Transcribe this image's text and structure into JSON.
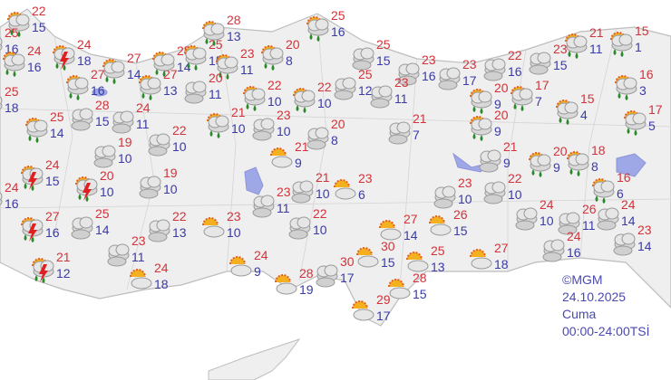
{
  "credit": {
    "source": "©MGM",
    "date": "24.10.2025",
    "day": "Cuma",
    "period": "00:00-24:00TSİ"
  },
  "colors": {
    "high": "#d2333a",
    "low": "#3a3aa8",
    "land": "#efefef",
    "water": "#9fa8e6"
  },
  "stations": [
    {
      "icon": "rain",
      "high": "22",
      "low": "15"
    },
    {
      "icon": "rain",
      "high": "25",
      "low": "16"
    },
    {
      "icon": "rain",
      "high": "24",
      "low": "16"
    },
    {
      "icon": "storm",
      "high": "24",
      "low": "18"
    },
    {
      "icon": "rain",
      "high": "27",
      "low": "14"
    },
    {
      "icon": "rain",
      "high": "27",
      "low": "16"
    },
    {
      "icon": "rain",
      "high": "27",
      "low": "13"
    },
    {
      "icon": "rain",
      "high": "25",
      "low": "14"
    },
    {
      "icon": "rain",
      "high": "25",
      "low": "15"
    },
    {
      "icon": "rain",
      "high": "28",
      "low": "13"
    },
    {
      "icon": "rain",
      "high": "23",
      "low": "11"
    },
    {
      "icon": "cloudy",
      "high": "20",
      "low": "11"
    },
    {
      "icon": "rain",
      "high": "20",
      "low": "8"
    },
    {
      "icon": "rain",
      "high": "25",
      "low": "16"
    },
    {
      "icon": "rain",
      "high": "25",
      "low": "18"
    },
    {
      "icon": "rain",
      "high": "25",
      "low": "14"
    },
    {
      "icon": "cloudy",
      "high": "28",
      "low": "15"
    },
    {
      "icon": "cloudy",
      "high": "24",
      "low": "11"
    },
    {
      "icon": "rain",
      "high": "22",
      "low": "10"
    },
    {
      "icon": "rain",
      "high": "22",
      "low": "10"
    },
    {
      "icon": "rain",
      "high": "21",
      "low": "10"
    },
    {
      "icon": "cloudy",
      "high": "23",
      "low": "10"
    },
    {
      "icon": "cloudy",
      "high": "22",
      "low": "10"
    },
    {
      "icon": "cloudy",
      "high": "19",
      "low": "10"
    },
    {
      "icon": "cloudy",
      "high": "20",
      "low": "8"
    },
    {
      "icon": "partly",
      "high": "21",
      "low": "9"
    },
    {
      "icon": "cloudy",
      "high": "25",
      "low": "15"
    },
    {
      "icon": "cloudy",
      "high": "23",
      "low": "16"
    },
    {
      "icon": "cloudy",
      "high": "25",
      "low": "12"
    },
    {
      "icon": "cloudy",
      "high": "23",
      "low": "11"
    },
    {
      "icon": "cloudy",
      "high": "21",
      "low": "7"
    },
    {
      "icon": "cloudy",
      "high": "23",
      "low": "17"
    },
    {
      "icon": "cloudy",
      "high": "22",
      "low": "16"
    },
    {
      "icon": "cloudy",
      "high": "23",
      "low": "15"
    },
    {
      "icon": "rain",
      "high": "21",
      "low": "11"
    },
    {
      "icon": "rain",
      "high": "15",
      "low": "1"
    },
    {
      "icon": "rain",
      "high": "20",
      "low": "9"
    },
    {
      "icon": "rain",
      "high": "17",
      "low": "7"
    },
    {
      "icon": "rain",
      "high": "20",
      "low": "9"
    },
    {
      "icon": "rain",
      "high": "15",
      "low": "4"
    },
    {
      "icon": "rain",
      "high": "16",
      "low": "3"
    },
    {
      "icon": "rain",
      "high": "17",
      "low": "5"
    },
    {
      "icon": "storm",
      "high": "24",
      "low": "15"
    },
    {
      "icon": "rain",
      "high": "24",
      "low": "16"
    },
    {
      "icon": "storm",
      "high": "20",
      "low": "10"
    },
    {
      "icon": "cloudy",
      "high": "19",
      "low": "10"
    },
    {
      "icon": "storm",
      "high": "27",
      "low": "16"
    },
    {
      "icon": "cloudy",
      "high": "25",
      "low": "14"
    },
    {
      "icon": "storm",
      "high": "21",
      "low": "12"
    },
    {
      "icon": "cloudy",
      "high": "23",
      "low": "11"
    },
    {
      "icon": "cloudy",
      "high": "22",
      "low": "13"
    },
    {
      "icon": "partly",
      "high": "23",
      "low": "10"
    },
    {
      "icon": "cloudy",
      "high": "23",
      "low": "11"
    },
    {
      "icon": "cloudy",
      "high": "21",
      "low": "10"
    },
    {
      "icon": "partly",
      "high": "23",
      "low": "6"
    },
    {
      "icon": "cloudy",
      "high": "22",
      "low": "10"
    },
    {
      "icon": "partly",
      "high": "24",
      "low": "9"
    },
    {
      "icon": "partly",
      "high": "24",
      "low": "18"
    },
    {
      "icon": "partly",
      "high": "28",
      "low": "19"
    },
    {
      "icon": "cloudy",
      "high": "30",
      "low": "17"
    },
    {
      "icon": "partly",
      "high": "30",
      "low": "15"
    },
    {
      "icon": "partly",
      "high": "27",
      "low": "14"
    },
    {
      "icon": "partly",
      "high": "26",
      "low": "15"
    },
    {
      "icon": "partly",
      "high": "25",
      "low": "13"
    },
    {
      "icon": "partly",
      "high": "28",
      "low": "15"
    },
    {
      "icon": "partly",
      "high": "29",
      "low": "17"
    },
    {
      "icon": "partly",
      "high": "27",
      "low": "18"
    },
    {
      "icon": "cloudy",
      "high": "21",
      "low": "9"
    },
    {
      "icon": "cloudy",
      "high": "23",
      "low": "10"
    },
    {
      "icon": "cloudy",
      "high": "22",
      "low": "10"
    },
    {
      "icon": "rain",
      "high": "20",
      "low": "9"
    },
    {
      "icon": "rain",
      "high": "18",
      "low": "8"
    },
    {
      "icon": "cloudy",
      "high": "24",
      "low": "10"
    },
    {
      "icon": "cloudy",
      "high": "26",
      "low": "11"
    },
    {
      "icon": "rain",
      "high": "16",
      "low": "6"
    },
    {
      "icon": "cloudy",
      "high": "24",
      "low": "14"
    },
    {
      "icon": "cloudy",
      "high": "23",
      "low": "14"
    },
    {
      "icon": "cloudy",
      "high": "24",
      "low": "16"
    }
  ]
}
